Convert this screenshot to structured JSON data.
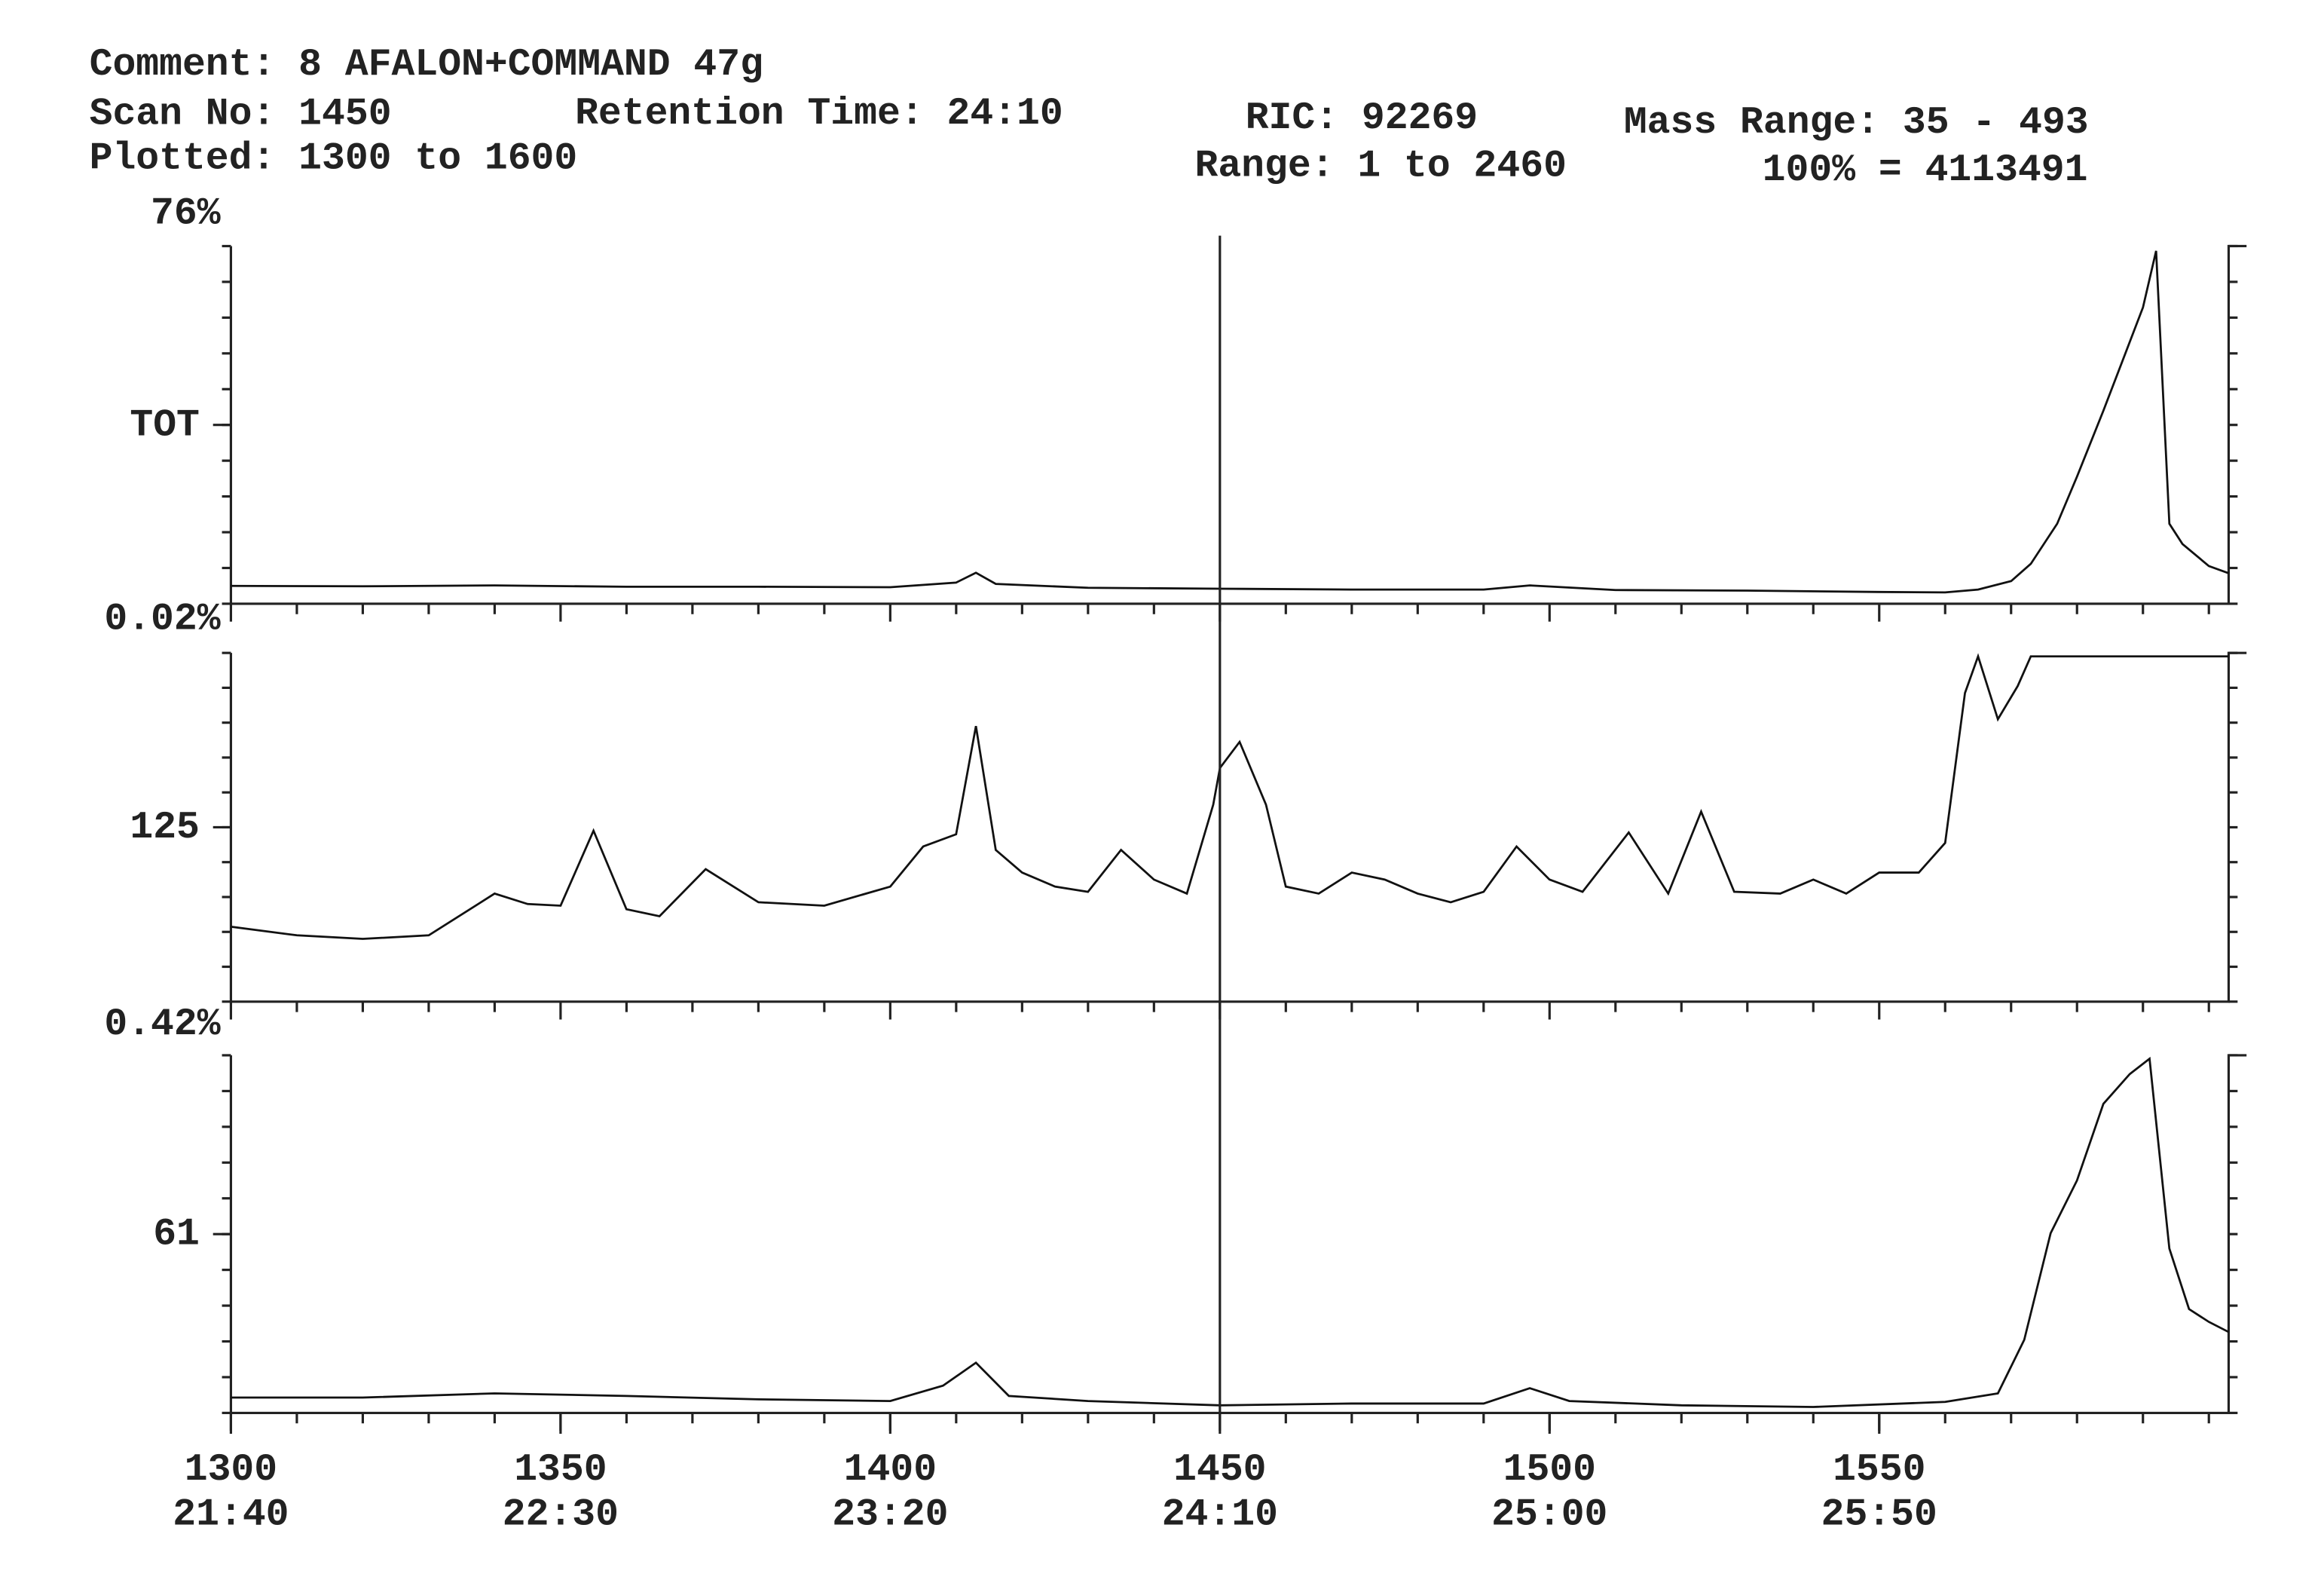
{
  "header": {
    "comment": "Comment: 8 AFALON+COMMAND 47g",
    "scan_no": {
      "label": "Scan No:",
      "value": 1450
    },
    "retention_time": "Retention Time: 24:10",
    "ric": "RIC: 92269",
    "mass_range": "Mass Range: 35 - 493",
    "plotted": "Plotted: 1300 to 1600",
    "range": "Range: 1 to 2460",
    "full_scale": "100% = 4113491"
  },
  "x_axis": {
    "xlim": [
      1300,
      1603
    ],
    "xticks": [
      1300,
      1350,
      1400,
      1450,
      1500,
      1550
    ],
    "time_labels": [
      "21:40",
      "22:30",
      "23:20",
      "24:10",
      "25:00",
      "25:50"
    ]
  },
  "chart_data": [
    {
      "type": "line",
      "label": "TOT",
      "scale_label": "76%",
      "ylim": [
        0,
        76
      ],
      "color": "#111111",
      "x": [
        1300,
        1320,
        1340,
        1360,
        1380,
        1400,
        1410,
        1413,
        1416,
        1430,
        1450,
        1470,
        1490,
        1497,
        1510,
        1530,
        1550,
        1560,
        1565,
        1570,
        1573,
        1577,
        1580,
        1584,
        1587,
        1590,
        1592,
        1594,
        1596,
        1600,
        1603
      ],
      "values": [
        3.8,
        3.7,
        3.9,
        3.6,
        3.6,
        3.5,
        4.5,
        6.6,
        4.2,
        3.4,
        3.2,
        3.0,
        3.0,
        3.9,
        2.9,
        2.8,
        2.5,
        2.4,
        3.0,
        4.8,
        8.5,
        17,
        27,
        41,
        52,
        63,
        75,
        17,
        12.7,
        8,
        6.5
      ]
    },
    {
      "type": "line",
      "label": "125",
      "scale_label": "0.02%",
      "ylim": [
        0,
        0.02
      ],
      "color": "#111111",
      "x": [
        1300,
        1310,
        1320,
        1330,
        1340,
        1345,
        1350,
        1355,
        1360,
        1365,
        1372,
        1380,
        1390,
        1400,
        1405,
        1410,
        1413,
        1416,
        1420,
        1425,
        1430,
        1435,
        1440,
        1445,
        1449,
        1450,
        1453,
        1457,
        1460,
        1465,
        1470,
        1475,
        1480,
        1485,
        1490,
        1495,
        1500,
        1505,
        1512,
        1518,
        1523,
        1528,
        1535,
        1540,
        1545,
        1550,
        1556,
        1560,
        1563,
        1565,
        1568,
        1571,
        1573,
        1603
      ],
      "values": [
        0.0043,
        0.0038,
        0.0036,
        0.0038,
        0.0062,
        0.0056,
        0.0055,
        0.0098,
        0.0053,
        0.0049,
        0.0076,
        0.0057,
        0.0055,
        0.0066,
        0.0089,
        0.0096,
        0.0158,
        0.0087,
        0.0074,
        0.0066,
        0.0063,
        0.0087,
        0.007,
        0.0062,
        0.0113,
        0.0134,
        0.0149,
        0.0113,
        0.0066,
        0.0062,
        0.0074,
        0.007,
        0.0062,
        0.0057,
        0.0063,
        0.0089,
        0.007,
        0.0063,
        0.0097,
        0.0062,
        0.0109,
        0.0063,
        0.0062,
        0.007,
        0.0062,
        0.0074,
        0.0074,
        0.0091,
        0.0177,
        0.0198,
        0.0162,
        0.0181,
        0.0198,
        0.0198
      ]
    },
    {
      "type": "line",
      "label": "61",
      "scale_label": "0.42%",
      "ylim": [
        0,
        0.42
      ],
      "color": "#111111",
      "x": [
        1300,
        1320,
        1340,
        1360,
        1380,
        1400,
        1408,
        1413,
        1418,
        1430,
        1450,
        1470,
        1490,
        1497,
        1503,
        1520,
        1540,
        1560,
        1568,
        1572,
        1576,
        1580,
        1584,
        1588,
        1591,
        1594,
        1597,
        1600,
        1603
      ],
      "values": [
        0.018,
        0.018,
        0.023,
        0.02,
        0.016,
        0.014,
        0.032,
        0.059,
        0.02,
        0.014,
        0.009,
        0.011,
        0.011,
        0.029,
        0.014,
        0.009,
        0.007,
        0.013,
        0.023,
        0.086,
        0.211,
        0.273,
        0.363,
        0.398,
        0.416,
        0.193,
        0.122,
        0.107,
        0.095
      ]
    }
  ]
}
